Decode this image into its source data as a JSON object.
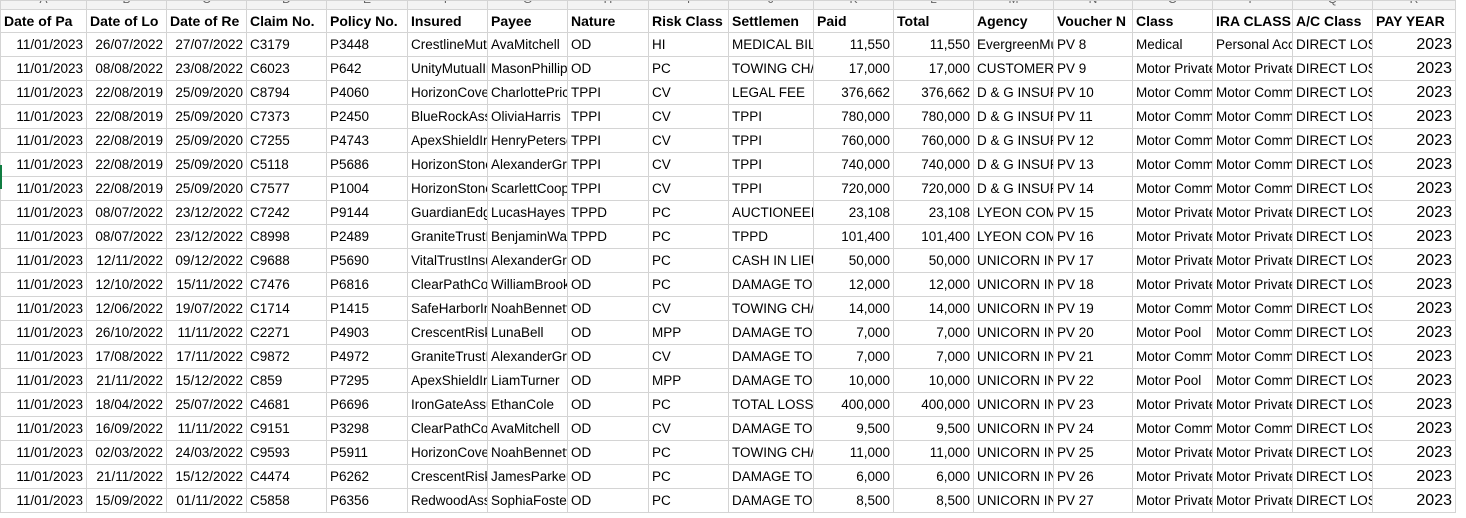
{
  "columns": [
    "A",
    "B",
    "C",
    "D",
    "E",
    "F",
    "G",
    "H",
    "I",
    "J",
    "K",
    "L",
    "M",
    "N",
    "O",
    "P",
    "Q",
    "R"
  ],
  "headers": [
    "Date of Pa",
    "Date of Lo",
    "Date of Re",
    "Claim No.",
    "Policy No.",
    "Insured",
    "Payee",
    "Nature",
    "Risk Class",
    "Settlemen",
    "Paid",
    "Total",
    "Agency",
    "Voucher N",
    "Class",
    "IRA CLASS",
    "A/C Class",
    "PAY YEAR"
  ],
  "rows": [
    [
      "11/01/2023",
      "26/07/2022",
      "27/07/2022",
      "C3179",
      "P3448",
      "CrestlineMutu",
      "AvaMitchell",
      "OD",
      "HI",
      "MEDICAL BIL",
      "11,550",
      "11,550",
      "EvergreenMut",
      "PV 8",
      "Medical",
      "Personal Acc",
      "DIRECT LOS",
      "2023"
    ],
    [
      "11/01/2023",
      "08/08/2022",
      "23/08/2022",
      "C6023",
      "P642",
      "UnityMutualIr",
      "MasonPhillips",
      "OD",
      "PC",
      "TOWING CH/",
      "17,000",
      "17,000",
      "CUSTOMER",
      "PV 9",
      "Motor Private",
      "Motor Private",
      "DIRECT LOS",
      "2023"
    ],
    [
      "11/01/2023",
      "22/08/2019",
      "25/09/2020",
      "C8794",
      "P4060",
      "HorizonCover",
      "CharlottePrice",
      "TPPI",
      "CV",
      "LEGAL FEE",
      "376,662",
      "376,662",
      "D & G INSUR",
      "PV 10",
      "Motor Comm",
      "Motor Comm",
      "DIRECT LOS",
      "2023"
    ],
    [
      "11/01/2023",
      "22/08/2019",
      "25/09/2020",
      "C7373",
      "P2450",
      "BlueRockAss",
      "OliviaHarris",
      "TPPI",
      "CV",
      "TPPI",
      "780,000",
      "780,000",
      "D & G INSUR",
      "PV 11",
      "Motor Comm",
      "Motor Comm",
      "DIRECT LOS",
      "2023"
    ],
    [
      "11/01/2023",
      "22/08/2019",
      "25/09/2020",
      "C7255",
      "P4743",
      "ApexShieldIn",
      "HenryPetersc",
      "TPPI",
      "CV",
      "TPPI",
      "760,000",
      "760,000",
      "D & G INSUR",
      "PV 12",
      "Motor Comm",
      "Motor Comm",
      "DIRECT LOS",
      "2023"
    ],
    [
      "11/01/2023",
      "22/08/2019",
      "25/09/2020",
      "C5118",
      "P5686",
      "HorizonStone",
      "AlexanderGra",
      "TPPI",
      "CV",
      "TPPI",
      "740,000",
      "740,000",
      "D & G INSUR",
      "PV 13",
      "Motor Comm",
      "Motor Comm",
      "DIRECT LOS",
      "2023"
    ],
    [
      "11/01/2023",
      "22/08/2019",
      "25/09/2020",
      "C7577",
      "P1004",
      "HorizonStone",
      "ScarlettCoop",
      "TPPI",
      "CV",
      "TPPI",
      "720,000",
      "720,000",
      "D & G INSUR",
      "PV 14",
      "Motor Comm",
      "Motor Comm",
      "DIRECT LOS",
      "2023"
    ],
    [
      "11/01/2023",
      "08/07/2022",
      "23/12/2022",
      "C7242",
      "P9144",
      "GuardianEdg",
      "LucasHayes",
      "TPPD",
      "PC",
      "AUCTIONEEI",
      "23,108",
      "23,108",
      "LYEON COM",
      "PV 15",
      "Motor Private",
      "Motor Private",
      "DIRECT LOS",
      "2023"
    ],
    [
      "11/01/2023",
      "08/07/2022",
      "23/12/2022",
      "C8998",
      "P2489",
      "GraniteTrustI",
      "BenjaminWar",
      "TPPD",
      "PC",
      "TPPD",
      "101,400",
      "101,400",
      "LYEON COM",
      "PV 16",
      "Motor Private",
      "Motor Private",
      "DIRECT LOS",
      "2023"
    ],
    [
      "11/01/2023",
      "12/11/2022",
      "09/12/2022",
      "C9688",
      "P5690",
      "VitalTrustInsu",
      "AlexanderGra",
      "OD",
      "PC",
      "CASH IN LIEU",
      "50,000",
      "50,000",
      "UNICORN INS",
      "PV 17",
      "Motor Private",
      "Motor Private",
      "DIRECT LOS",
      "2023"
    ],
    [
      "11/01/2023",
      "12/10/2022",
      "15/11/2022",
      "C7476",
      "P6816",
      "ClearPathCov",
      "WilliamBrook",
      "OD",
      "PC",
      "DAMAGE TO",
      "12,000",
      "12,000",
      "UNICORN INS",
      "PV 18",
      "Motor Private",
      "Motor Private",
      "DIRECT LOS",
      "2023"
    ],
    [
      "11/01/2023",
      "12/06/2022",
      "19/07/2022",
      "C1714",
      "P1415",
      "SafeHarborIn",
      "NoahBennett",
      "OD",
      "CV",
      "TOWING CH/",
      "14,000",
      "14,000",
      "UNICORN INS",
      "PV 19",
      "Motor Comm",
      "Motor Comm",
      "DIRECT LOS",
      "2023"
    ],
    [
      "11/01/2023",
      "26/10/2022",
      "11/11/2022",
      "C2271",
      "P4903",
      "CrescentRisk",
      "LunaBell",
      "OD",
      "MPP",
      "DAMAGE TO",
      "7,000",
      "7,000",
      "UNICORN INS",
      "PV 20",
      "Motor Pool",
      "Motor Comm",
      "DIRECT LOS",
      "2023"
    ],
    [
      "11/01/2023",
      "17/08/2022",
      "17/11/2022",
      "C9872",
      "P4972",
      "GraniteTrustI",
      "AlexanderGra",
      "OD",
      "CV",
      "DAMAGE TO",
      "7,000",
      "7,000",
      "UNICORN INS",
      "PV 21",
      "Motor Comm",
      "Motor Comm",
      "DIRECT LOS",
      "2023"
    ],
    [
      "11/01/2023",
      "21/11/2022",
      "15/12/2022",
      "C859",
      "P7295",
      "ApexShieldIn",
      "LiamTurner",
      "OD",
      "MPP",
      "DAMAGE TO",
      "10,000",
      "10,000",
      "UNICORN INS",
      "PV 22",
      "Motor Pool",
      "Motor Comm",
      "DIRECT LOS",
      "2023"
    ],
    [
      "11/01/2023",
      "18/04/2022",
      "25/07/2022",
      "C4681",
      "P6696",
      "IronGateAssu",
      "EthanCole",
      "OD",
      "PC",
      "TOTAL LOSS",
      "400,000",
      "400,000",
      "UNICORN INS",
      "PV 23",
      "Motor Private",
      "Motor Private",
      "DIRECT LOS",
      "2023"
    ],
    [
      "11/01/2023",
      "16/09/2022",
      "11/11/2022",
      "C9151",
      "P3298",
      "ClearPathCov",
      "AvaMitchell",
      "OD",
      "CV",
      "DAMAGE TO",
      "9,500",
      "9,500",
      "UNICORN INS",
      "PV 24",
      "Motor Comm",
      "Motor Comm",
      "DIRECT LOS",
      "2023"
    ],
    [
      "11/01/2023",
      "02/03/2022",
      "24/03/2022",
      "C9593",
      "P5911",
      "HorizonCover",
      "NoahBennett",
      "OD",
      "PC",
      "TOWING CH/",
      "11,000",
      "11,000",
      "UNICORN INS",
      "PV 25",
      "Motor Private",
      "Motor Private",
      "DIRECT LOS",
      "2023"
    ],
    [
      "11/01/2023",
      "21/11/2022",
      "15/12/2022",
      "C4474",
      "P6262",
      "CrescentRisk",
      "JamesParker",
      "OD",
      "PC",
      "DAMAGE TO",
      "6,000",
      "6,000",
      "UNICORN INS",
      "PV 26",
      "Motor Private",
      "Motor Private",
      "DIRECT LOS",
      "2023"
    ],
    [
      "11/01/2023",
      "15/09/2022",
      "01/11/2022",
      "C5858",
      "P6356",
      "RedwoodAss",
      "SophiaFoster",
      "OD",
      "PC",
      "DAMAGE TO",
      "8,500",
      "8,500",
      "UNICORN INS",
      "PV 27",
      "Motor Private",
      "Motor Private",
      "DIRECT LOS",
      "2023"
    ]
  ]
}
